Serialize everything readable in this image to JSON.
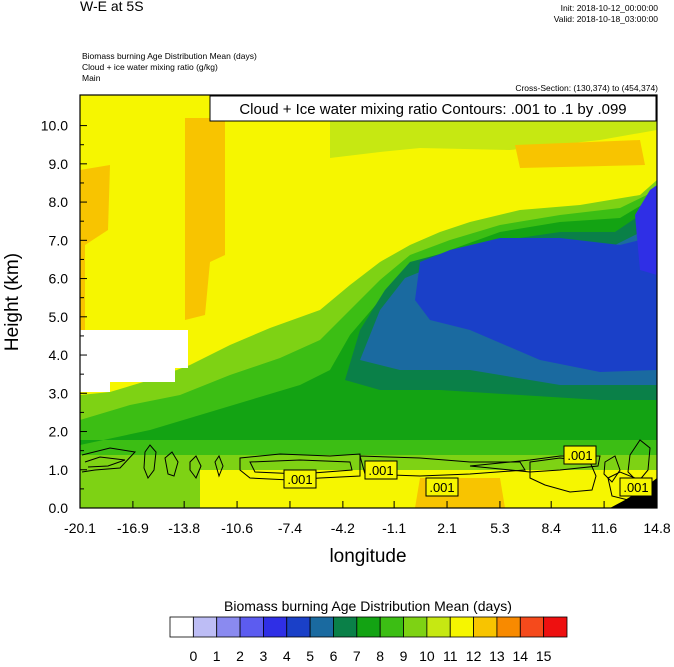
{
  "header": {
    "title": "W-E at 5S",
    "init": "Init: 2018-10-12_00:00:00",
    "valid": "Valid: 2018-10-18_03:00:00",
    "fields": [
      "Biomass burning Age Distribution Mean   (days)",
      "Cloud + ice water mixing ratio   (g/kg)",
      "Main"
    ],
    "cross_section": "Cross-Section: (130,374) to (454,374)"
  },
  "chart_data": {
    "type": "heatmap",
    "contour_title": "Cloud + Ice water mixing ratio Contours: .001 to .1 by .099",
    "xlabel": "longitude",
    "ylabel": "Height (km)",
    "xlim": [
      -20.1,
      14.8
    ],
    "ylim": [
      0.0,
      10.8
    ],
    "x_ticks": [
      "-20.1",
      "-16.9",
      "-13.8",
      "-10.6",
      "-7.4",
      "-4.2",
      "-1.1",
      "2.1",
      "5.3",
      "8.4",
      "11.6",
      "14.8"
    ],
    "y_ticks": [
      "0.0",
      "1.0",
      "2.0",
      "3.0",
      "4.0",
      "5.0",
      "6.0",
      "7.0",
      "8.0",
      "9.0",
      "10.0"
    ],
    "contour_labels": [
      ".001",
      ".001",
      ".001",
      ".001",
      ".001"
    ],
    "colorbar": {
      "title": "Biomass burning Age Distribution Mean  (days)",
      "labels": [
        "0",
        "1",
        "2",
        "3",
        "4",
        "5",
        "6",
        "7",
        "8",
        "9",
        "10",
        "11",
        "12",
        "13",
        "14",
        "15"
      ],
      "colors": [
        "#ffffff",
        "#bdbdf5",
        "#8a8af0",
        "#5c5cf0",
        "#2f2fe6",
        "#1a40c8",
        "#1a6aa0",
        "#0a8048",
        "#13a313",
        "#3cbe14",
        "#7ed214",
        "#c6e812",
        "#f6f600",
        "#f8c400",
        "#f88a00",
        "#f54a1c",
        "#ee1010"
      ]
    }
  }
}
